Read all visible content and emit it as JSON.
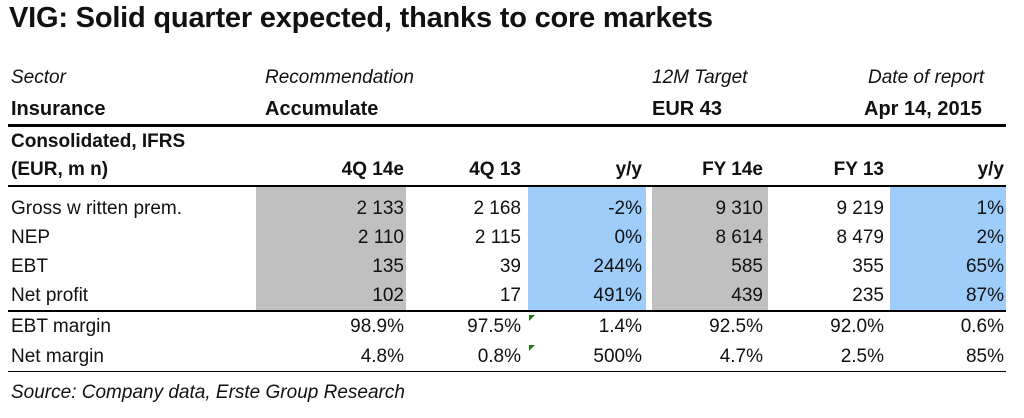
{
  "title": "VIG: Solid quarter expected, thanks to core markets",
  "header": {
    "sector_label": "Sector",
    "sector_value": "Insurance",
    "recommendation_label": "Recommendation",
    "recommendation_value": "Accumulate",
    "target_label": "12M Target",
    "target_value": "EUR 43",
    "date_label": "Date of report",
    "date_value": "Apr 14, 2015"
  },
  "table": {
    "subtitle_line1": "Consolidated, IFRS",
    "subtitle_line2": "(EUR, m n)",
    "columns": [
      "4Q 14e",
      "4Q 13",
      "y/y",
      "FY 14e",
      "FY 13",
      "y/y"
    ],
    "rows": [
      {
        "label": "Gross w ritten prem.",
        "values": [
          "2 133",
          "2 168",
          "-2%",
          "9 310",
          "9 219",
          "1%"
        ]
      },
      {
        "label": "NEP",
        "values": [
          "2 110",
          "2 115",
          "0%",
          "8 614",
          "8 479",
          "2%"
        ]
      },
      {
        "label": "EBT",
        "values": [
          "135",
          "39",
          "244%",
          "585",
          "355",
          "65%"
        ]
      },
      {
        "label": "Net profit",
        "values": [
          "102",
          "17",
          "491%",
          "439",
          "235",
          "87%"
        ]
      },
      {
        "label": "EBT margin",
        "values": [
          "98.9%",
          "97.5%",
          "1.4%",
          "92.5%",
          "92.0%",
          "0.6%"
        ]
      },
      {
        "label": "Net margin",
        "values": [
          "4.8%",
          "0.8%",
          "500%",
          "4.7%",
          "2.5%",
          "85%"
        ]
      }
    ]
  },
  "source": "Source: Company data, Erste Group Research",
  "colors": {
    "gray_shade": "#c0c0c0",
    "blue_shade": "#9fcdfa",
    "marker": "#1a7a1a"
  }
}
